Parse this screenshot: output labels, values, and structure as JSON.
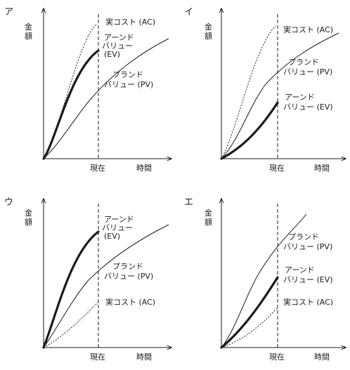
{
  "axis": {
    "y_label_top": "金",
    "y_label_bottom": "額",
    "now_label": "現在",
    "time_label": "時間"
  },
  "panels": [
    {
      "id": "ア",
      "ac_label": "実コスト (AC)",
      "ev_label": [
        "アーンド",
        "バリュー",
        "(EV)"
      ],
      "pv_label": [
        "プランド",
        "バリュー (PV)"
      ]
    },
    {
      "id": "イ",
      "ac_label": "実コスト (AC)",
      "pv_label": [
        "プランド",
        "バリュー (PV)"
      ],
      "ev_label": [
        "アーンド",
        "バリュー (EV)"
      ]
    },
    {
      "id": "ウ",
      "ev_label": [
        "アーンド",
        "バリュー",
        "(EV)"
      ],
      "pv_label": [
        "プランド",
        "バリュー (PV)"
      ],
      "ac_label": "実コスト (AC)"
    },
    {
      "id": "エ",
      "pv_label": [
        "プランド",
        "バリュー (PV)"
      ],
      "ev_label": [
        "アーンド",
        "バリュー (EV)"
      ],
      "ac_label": "実コスト (AC)"
    }
  ]
}
